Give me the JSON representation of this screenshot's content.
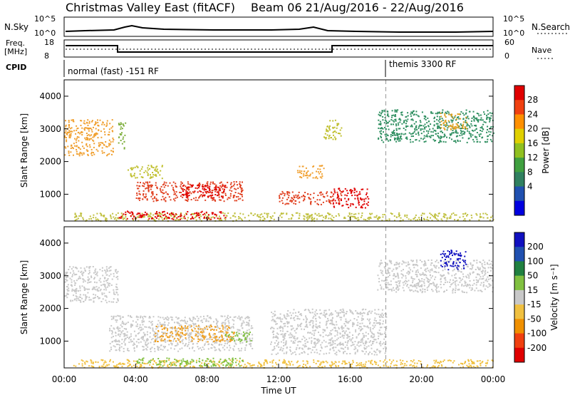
{
  "title": "Christmas Valley East (fitACF)",
  "subtitle": "Beam 06  21/Aug/2016 - 22/Aug/2016",
  "top_panels": {
    "nsky_label": "N.Sky",
    "nsearch_label": "N.Search",
    "nsky_ticks": [
      "10^5",
      "10^0"
    ],
    "nsearch_ticks": [
      "10^5",
      "10^0"
    ],
    "freq_label": "Freq.",
    "freq_unit": "[MHz]",
    "freq_ticks": [
      "18",
      "8"
    ],
    "nave_label": "Nave",
    "nave_ticks": [
      "60",
      "0"
    ],
    "cpid_label": "CPID",
    "cpid_segments": [
      {
        "label": "normal (fast) -151 RF",
        "start_hour": 0
      },
      {
        "label": "themis 3300 RF",
        "start_hour": 18
      }
    ]
  },
  "chart_data": [
    {
      "type": "heatmap",
      "name": "power",
      "ylabel": "Slant Range [km]",
      "yticks": [
        1000,
        2000,
        3000,
        4000
      ],
      "ylim": [
        180,
        4500
      ],
      "xlim_hours": [
        0,
        24
      ],
      "colorbar": {
        "label": "Power [dB]",
        "ticks": [
          "28",
          "24",
          "20",
          "16",
          "12",
          "8",
          "4"
        ],
        "colors": [
          "#e00000",
          "#f04010",
          "#ff9000",
          "#e0d000",
          "#90c020",
          "#40a040",
          "#308060",
          "#2050b0",
          "#0000e0"
        ]
      },
      "regions": [
        {
          "x0": 0.0,
          "x1": 2.8,
          "y0": 2200,
          "y1": 3300,
          "color": "#f0a030"
        },
        {
          "x0": 3.0,
          "x1": 3.4,
          "y0": 2400,
          "y1": 3300,
          "color": "#80b040"
        },
        {
          "x0": 3.5,
          "x1": 5.5,
          "y0": 1500,
          "y1": 1900,
          "color": "#c0c030"
        },
        {
          "x0": 4.0,
          "x1": 10.0,
          "y0": 800,
          "y1": 1400,
          "color": "#e04020"
        },
        {
          "x0": 6.5,
          "x1": 9.0,
          "y0": 900,
          "y1": 1300,
          "color": "#e00000"
        },
        {
          "x0": 13.0,
          "x1": 14.5,
          "y0": 1500,
          "y1": 1900,
          "color": "#f0a030"
        },
        {
          "x0": 12.0,
          "x1": 15.5,
          "y0": 700,
          "y1": 1100,
          "color": "#e04020"
        },
        {
          "x0": 15.0,
          "x1": 17.0,
          "y0": 600,
          "y1": 1200,
          "color": "#e00000"
        },
        {
          "x0": 14.5,
          "x1": 15.5,
          "y0": 2700,
          "y1": 3300,
          "color": "#c0c030"
        },
        {
          "x0": 17.5,
          "x1": 24.0,
          "y0": 2600,
          "y1": 3600,
          "color": "#2f8f60"
        },
        {
          "x0": 21.0,
          "x1": 22.5,
          "y0": 3000,
          "y1": 3500,
          "color": "#e0a020"
        },
        {
          "x0": 0.5,
          "x1": 24.0,
          "y0": 200,
          "y1": 450,
          "color": "#c0c040"
        },
        {
          "x0": 3.0,
          "x1": 9.0,
          "y0": 250,
          "y1": 500,
          "color": "#e00000"
        }
      ]
    },
    {
      "type": "heatmap",
      "name": "velocity",
      "ylabel": "Slant Range [km]",
      "yticks": [
        1000,
        2000,
        3000,
        4000
      ],
      "ylim": [
        180,
        4500
      ],
      "xlim_hours": [
        0,
        24
      ],
      "colorbar": {
        "label": "Velocity [m s⁻¹]",
        "ticks": [
          "200",
          "100",
          "50",
          "15",
          "-15",
          "-50",
          "-100",
          "-200"
        ],
        "colors": [
          "#1010c0",
          "#2050b0",
          "#208040",
          "#80c040",
          "#c8c8c8",
          "#f0c040",
          "#f09000",
          "#f04010",
          "#e00000"
        ]
      },
      "regions": [
        {
          "x0": 0.0,
          "x1": 3.0,
          "y0": 2200,
          "y1": 3300,
          "color": "#c8c8c8"
        },
        {
          "x0": 2.5,
          "x1": 10.5,
          "y0": 700,
          "y1": 1800,
          "color": "#c8c8c8"
        },
        {
          "x0": 5.0,
          "x1": 9.5,
          "y0": 1000,
          "y1": 1500,
          "color": "#f0a020"
        },
        {
          "x0": 9.0,
          "x1": 10.5,
          "y0": 1000,
          "y1": 1300,
          "color": "#80c040"
        },
        {
          "x0": 11.5,
          "x1": 18.0,
          "y0": 600,
          "y1": 2000,
          "color": "#c8c8c8"
        },
        {
          "x0": 17.5,
          "x1": 24.0,
          "y0": 2500,
          "y1": 3500,
          "color": "#c8c8c8"
        },
        {
          "x0": 21.0,
          "x1": 22.5,
          "y0": 3200,
          "y1": 3800,
          "color": "#1010c0"
        },
        {
          "x0": 0.5,
          "x1": 24.0,
          "y0": 200,
          "y1": 450,
          "color": "#f0c040"
        },
        {
          "x0": 4.0,
          "x1": 10.0,
          "y0": 250,
          "y1": 500,
          "color": "#80c040"
        }
      ]
    }
  ],
  "xaxis": {
    "label": "Time UT",
    "ticks": [
      "00:00",
      "04:00",
      "08:00",
      "12:00",
      "16:00",
      "20:00",
      "00:00"
    ]
  },
  "dashed_marker_hour": 18
}
